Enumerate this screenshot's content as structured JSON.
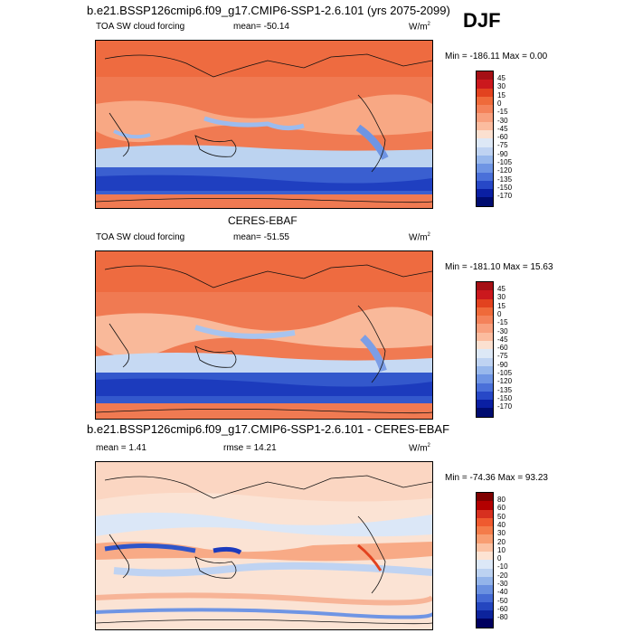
{
  "season": "DJF",
  "panels": [
    {
      "title": "b.e21.BSSP126cmip6.f09_g17.CMIP6-SSP1-2.6.101 (yrs 2075-2099)",
      "left_label": "TOA SW cloud forcing",
      "center_label": "mean= -50.14",
      "units": "W/m",
      "units_sup": "2",
      "minmax": "Min = -186.11 Max =   0.00",
      "colorbar_levels": [
        "45",
        "30",
        "15",
        "0",
        "-15",
        "-30",
        "-45",
        "-60",
        "-75",
        "-90",
        "-105",
        "-120",
        "-135",
        "-150",
        "-170"
      ],
      "colorbar_colors": [
        "#a50f15",
        "#cb181d",
        "#e2421f",
        "#ef6a3a",
        "#f4825a",
        "#f8a07e",
        "#fbbc9f",
        "#fbe0d0",
        "#dde8f6",
        "#bfd3f2",
        "#98b8ec",
        "#6f95e4",
        "#4a70d9",
        "#2748c7",
        "#0a1fa3",
        "#000c70"
      ]
    },
    {
      "title": "CERES-EBAF",
      "left_label": "TOA SW cloud forcing",
      "center_label": "mean= -51.55",
      "units": "W/m",
      "units_sup": "2",
      "minmax": "Min = -181.10 Max =  15.63",
      "colorbar_levels": [
        "45",
        "30",
        "15",
        "0",
        "-15",
        "-30",
        "-45",
        "-60",
        "-75",
        "-90",
        "-105",
        "-120",
        "-135",
        "-150",
        "-170"
      ],
      "colorbar_colors": [
        "#a50f15",
        "#cb181d",
        "#e2421f",
        "#ef6a3a",
        "#f4825a",
        "#f8a07e",
        "#fbbc9f",
        "#fbe0d0",
        "#dde8f6",
        "#bfd3f2",
        "#98b8ec",
        "#6f95e4",
        "#4a70d9",
        "#2748c7",
        "#0a1fa3",
        "#000c70"
      ]
    },
    {
      "title": "b.e21.BSSP126cmip6.f09_g17.CMIP6-SSP1-2.6.101 - CERES-EBAF",
      "left_label": "mean =   1.41",
      "center_label": "rmse =  14.21",
      "units": "W/m",
      "units_sup": "2",
      "minmax": "Min = -74.36 Max =  93.23",
      "colorbar_levels": [
        "80",
        "60",
        "50",
        "40",
        "30",
        "20",
        "10",
        "0",
        "-10",
        "-20",
        "-30",
        "-40",
        "-50",
        "-60",
        "-80"
      ],
      "colorbar_colors": [
        "#7f0000",
        "#b30000",
        "#d7301f",
        "#ef5a2f",
        "#f47c4a",
        "#f89e72",
        "#fbc2a3",
        "#fde3d3",
        "#dce8f7",
        "#bcd2f1",
        "#93b4ea",
        "#6a90e0",
        "#456ad4",
        "#2446bf",
        "#0c239c",
        "#00005f"
      ]
    }
  ]
}
